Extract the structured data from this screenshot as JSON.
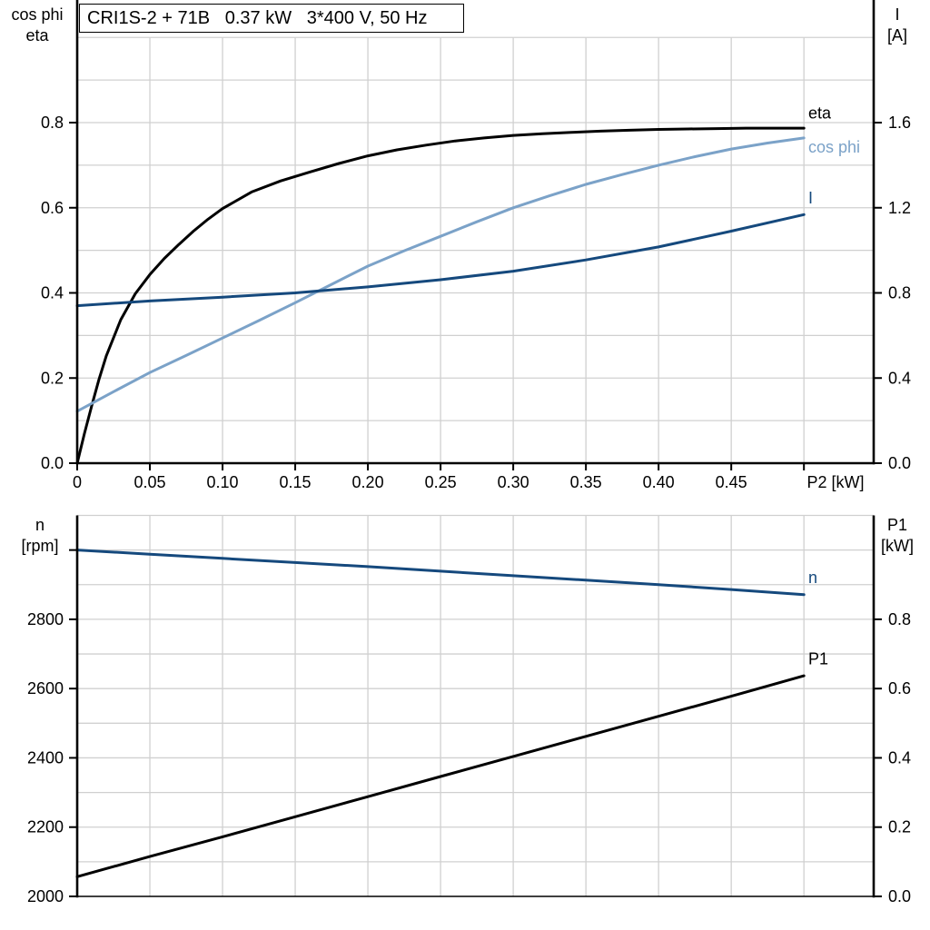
{
  "title_box": {
    "text": "CRI1S-2 + 71B   0.37 kW   3*400 V, 50 Hz"
  },
  "colors": {
    "black": "#000000",
    "dark_blue": "#15497D",
    "light_blue": "#7BA2C8",
    "grid": "#D0D0D0"
  },
  "chart_data": [
    {
      "type": "line",
      "title": "CRI1S-2 + 71B 0.37 kW 3*400 V, 50 Hz",
      "xlabel": "P2 [kW]",
      "x_axis": {
        "lim": [
          0,
          0.548
        ],
        "ticks": [
          0,
          0.05,
          0.1,
          0.15,
          0.2,
          0.25,
          0.3,
          0.35,
          0.4,
          0.45,
          0.5
        ],
        "tick_labels": [
          "0",
          "0.05",
          "0.10",
          "0.15",
          "0.20",
          "0.25",
          "0.30",
          "0.35",
          "0.40",
          "0.45"
        ]
      },
      "left_axis": {
        "title_line1": "cos phi",
        "title_line2": "eta",
        "lim": [
          0,
          1.0
        ],
        "grid_step": 0.1,
        "ticks": [
          0.0,
          0.2,
          0.4,
          0.6,
          0.8
        ],
        "tick_labels": [
          "0.0",
          "0.2",
          "0.4",
          "0.6",
          "0.8"
        ]
      },
      "right_axis": {
        "title_line1": "I",
        "title_line2": "[A]",
        "lim": [
          0,
          2.0
        ],
        "ticks": [
          0.0,
          0.4,
          0.8,
          1.2,
          1.6
        ],
        "tick_labels": [
          "0.0",
          "0.4",
          "0.8",
          "1.2",
          "1.6"
        ]
      },
      "series": [
        {
          "name": "eta",
          "axis": "left",
          "color": "#000000",
          "label_pos": [
            0.503,
            0.81
          ],
          "points": [
            [
              0,
              0
            ],
            [
              0.005,
              0.07
            ],
            [
              0.01,
              0.135
            ],
            [
              0.015,
              0.197
            ],
            [
              0.02,
              0.252
            ],
            [
              0.03,
              0.337
            ],
            [
              0.04,
              0.398
            ],
            [
              0.05,
              0.443
            ],
            [
              0.06,
              0.481
            ],
            [
              0.07,
              0.514
            ],
            [
              0.08,
              0.545
            ],
            [
              0.09,
              0.573
            ],
            [
              0.1,
              0.598
            ],
            [
              0.12,
              0.637
            ],
            [
              0.14,
              0.663
            ],
            [
              0.16,
              0.684
            ],
            [
              0.18,
              0.704
            ],
            [
              0.2,
              0.722
            ],
            [
              0.22,
              0.736
            ],
            [
              0.24,
              0.747
            ],
            [
              0.26,
              0.757
            ],
            [
              0.28,
              0.764
            ],
            [
              0.3,
              0.77
            ],
            [
              0.32,
              0.774
            ],
            [
              0.34,
              0.777
            ],
            [
              0.36,
              0.78
            ],
            [
              0.38,
              0.782
            ],
            [
              0.4,
              0.784
            ],
            [
              0.42,
              0.785
            ],
            [
              0.44,
              0.786
            ],
            [
              0.46,
              0.787
            ],
            [
              0.48,
              0.787
            ],
            [
              0.5,
              0.787
            ]
          ]
        },
        {
          "name": "cos phi",
          "axis": "left",
          "color": "#7BA2C8",
          "label_pos": [
            0.503,
            0.73
          ],
          "points": [
            [
              0,
              0.122
            ],
            [
              0.025,
              0.168
            ],
            [
              0.05,
              0.213
            ],
            [
              0.075,
              0.253
            ],
            [
              0.1,
              0.294
            ],
            [
              0.125,
              0.335
            ],
            [
              0.15,
              0.377
            ],
            [
              0.175,
              0.42
            ],
            [
              0.2,
              0.463
            ],
            [
              0.225,
              0.499
            ],
            [
              0.25,
              0.533
            ],
            [
              0.275,
              0.567
            ],
            [
              0.3,
              0.6
            ],
            [
              0.325,
              0.628
            ],
            [
              0.35,
              0.655
            ],
            [
              0.375,
              0.678
            ],
            [
              0.4,
              0.7
            ],
            [
              0.425,
              0.72
            ],
            [
              0.45,
              0.738
            ],
            [
              0.475,
              0.752
            ],
            [
              0.5,
              0.764
            ]
          ]
        },
        {
          "name": "I",
          "axis": "right",
          "color": "#15497D",
          "label_pos": [
            0.503,
            1.22
          ],
          "points": [
            [
              0,
              0.74
            ],
            [
              0.05,
              0.762
            ],
            [
              0.1,
              0.78
            ],
            [
              0.15,
              0.8
            ],
            [
              0.2,
              0.828
            ],
            [
              0.25,
              0.862
            ],
            [
              0.3,
              0.902
            ],
            [
              0.35,
              0.955
            ],
            [
              0.4,
              1.016
            ],
            [
              0.45,
              1.09
            ],
            [
              0.5,
              1.168
            ]
          ]
        }
      ]
    },
    {
      "type": "line",
      "title": "",
      "xlabel": "",
      "x_axis": {
        "lim": [
          0,
          0.548
        ],
        "ticks": [
          0,
          0.05,
          0.1,
          0.15,
          0.2,
          0.25,
          0.3,
          0.35,
          0.4,
          0.45,
          0.5
        ],
        "tick_labels": []
      },
      "left_axis": {
        "title_line1": "n",
        "title_line2": "[rpm]",
        "lim": [
          2000,
          3100
        ],
        "grid_step": 100,
        "ticks": [
          2000,
          2200,
          2400,
          2600,
          2800,
          3000
        ],
        "tick_labels": [
          "2000",
          "2200",
          "2400",
          "2600",
          "2800"
        ]
      },
      "right_axis": {
        "title_line1": "P1",
        "title_line2": "[kW]",
        "lim": [
          0,
          1.1
        ],
        "ticks": [
          0.0,
          0.2,
          0.4,
          0.6,
          0.8
        ],
        "tick_labels": [
          "0.0",
          "0.2",
          "0.4",
          "0.6",
          "0.8"
        ]
      },
      "series": [
        {
          "name": "n",
          "axis": "left",
          "color": "#15497D",
          "label_pos": [
            0.503,
            2905
          ],
          "points": [
            [
              0,
              3000
            ],
            [
              0.05,
              2988
            ],
            [
              0.1,
              2976
            ],
            [
              0.15,
              2964
            ],
            [
              0.2,
              2952
            ],
            [
              0.25,
              2939
            ],
            [
              0.3,
              2926
            ],
            [
              0.35,
              2913
            ],
            [
              0.4,
              2900
            ],
            [
              0.45,
              2886
            ],
            [
              0.5,
              2871
            ]
          ]
        },
        {
          "name": "P1",
          "axis": "right",
          "color": "#000000",
          "label_pos": [
            0.503,
            0.67
          ],
          "points": [
            [
              0,
              0.057
            ],
            [
              0.05,
              0.115
            ],
            [
              0.1,
              0.172
            ],
            [
              0.15,
              0.23
            ],
            [
              0.2,
              0.288
            ],
            [
              0.25,
              0.346
            ],
            [
              0.3,
              0.404
            ],
            [
              0.35,
              0.462
            ],
            [
              0.4,
              0.52
            ],
            [
              0.45,
              0.578
            ],
            [
              0.5,
              0.637
            ]
          ]
        }
      ]
    }
  ]
}
